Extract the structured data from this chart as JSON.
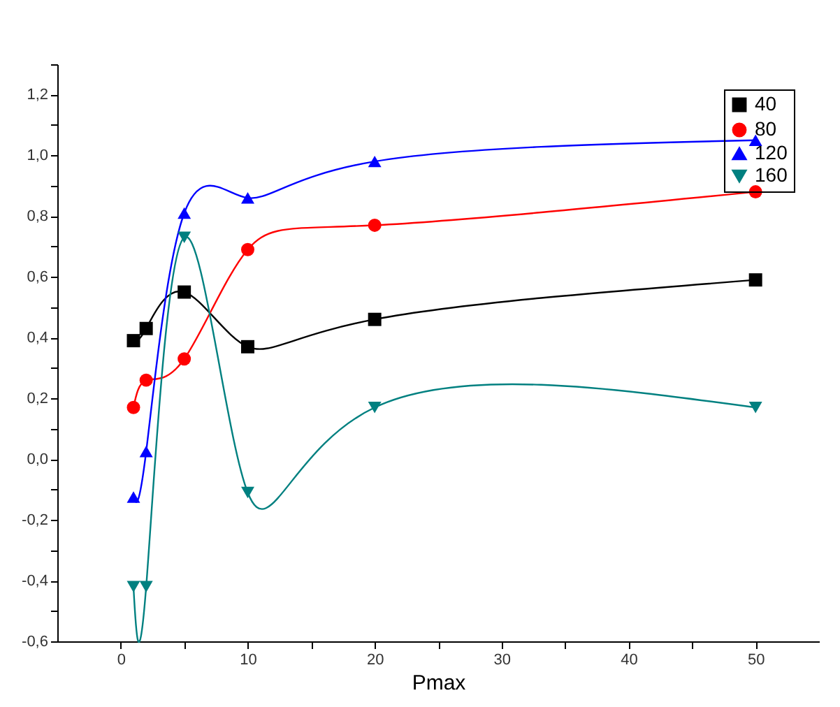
{
  "chart_data": {
    "type": "line",
    "xlabel": "Pmax",
    "x": [
      1,
      2,
      5,
      10,
      20,
      50
    ],
    "series": [
      {
        "name": "40",
        "color": "#000000",
        "marker": "square",
        "values": [
          0.39,
          0.43,
          0.55,
          0.37,
          0.46,
          0.59
        ]
      },
      {
        "name": "80",
        "color": "#ff0000",
        "marker": "circle",
        "values": [
          0.17,
          0.26,
          0.33,
          0.69,
          0.77,
          0.88
        ]
      },
      {
        "name": "120",
        "color": "#0000ff",
        "marker": "triangle",
        "values": [
          -0.125,
          0.025,
          0.81,
          0.86,
          0.98,
          1.05
        ]
      },
      {
        "name": "160",
        "color": "#008080",
        "marker": "triangle-down",
        "values": [
          -0.42,
          -0.42,
          0.73,
          -0.11,
          0.17,
          0.17
        ]
      }
    ],
    "xlim": [
      -5,
      55
    ],
    "xticks": [
      0,
      {
        "value": 5,
        "label": null
      },
      10,
      {
        "value": 15,
        "label": null
      },
      20,
      {
        "value": 25,
        "label": null
      },
      30,
      {
        "value": 35,
        "label": null
      },
      40,
      {
        "value": 45,
        "label": null
      },
      50
    ],
    "ylim": [
      -0.6,
      1.3
    ],
    "yticks": [
      {
        "value": -0.6,
        "label": "-0,6"
      },
      {
        "value": -0.5,
        "label": null
      },
      {
        "value": -0.4,
        "label": "-0,4"
      },
      {
        "value": -0.3,
        "label": null
      },
      {
        "value": -0.2,
        "label": "-0,2"
      },
      {
        "value": -0.1,
        "label": null
      },
      {
        "value": 0,
        "label": "0,0"
      },
      {
        "value": 0.1,
        "label": null
      },
      {
        "value": 0.2,
        "label": "0,2"
      },
      {
        "value": 0.3,
        "label": null
      },
      {
        "value": 0.4,
        "label": "0,4"
      },
      {
        "value": 0.5,
        "label": null
      },
      {
        "value": 0.6,
        "label": "0,6"
      },
      {
        "value": 0.7,
        "label": null
      },
      {
        "value": 0.8,
        "label": "0,8"
      },
      {
        "value": 0.9,
        "label": null
      },
      {
        "value": 1.0,
        "label": "1,0"
      },
      {
        "value": 1.1,
        "label": null
      },
      {
        "value": 1.2,
        "label": "1,2"
      },
      {
        "value": 1.3,
        "label": null
      }
    ],
    "grid": false,
    "legend": "top right",
    "line_style": "solid"
  }
}
